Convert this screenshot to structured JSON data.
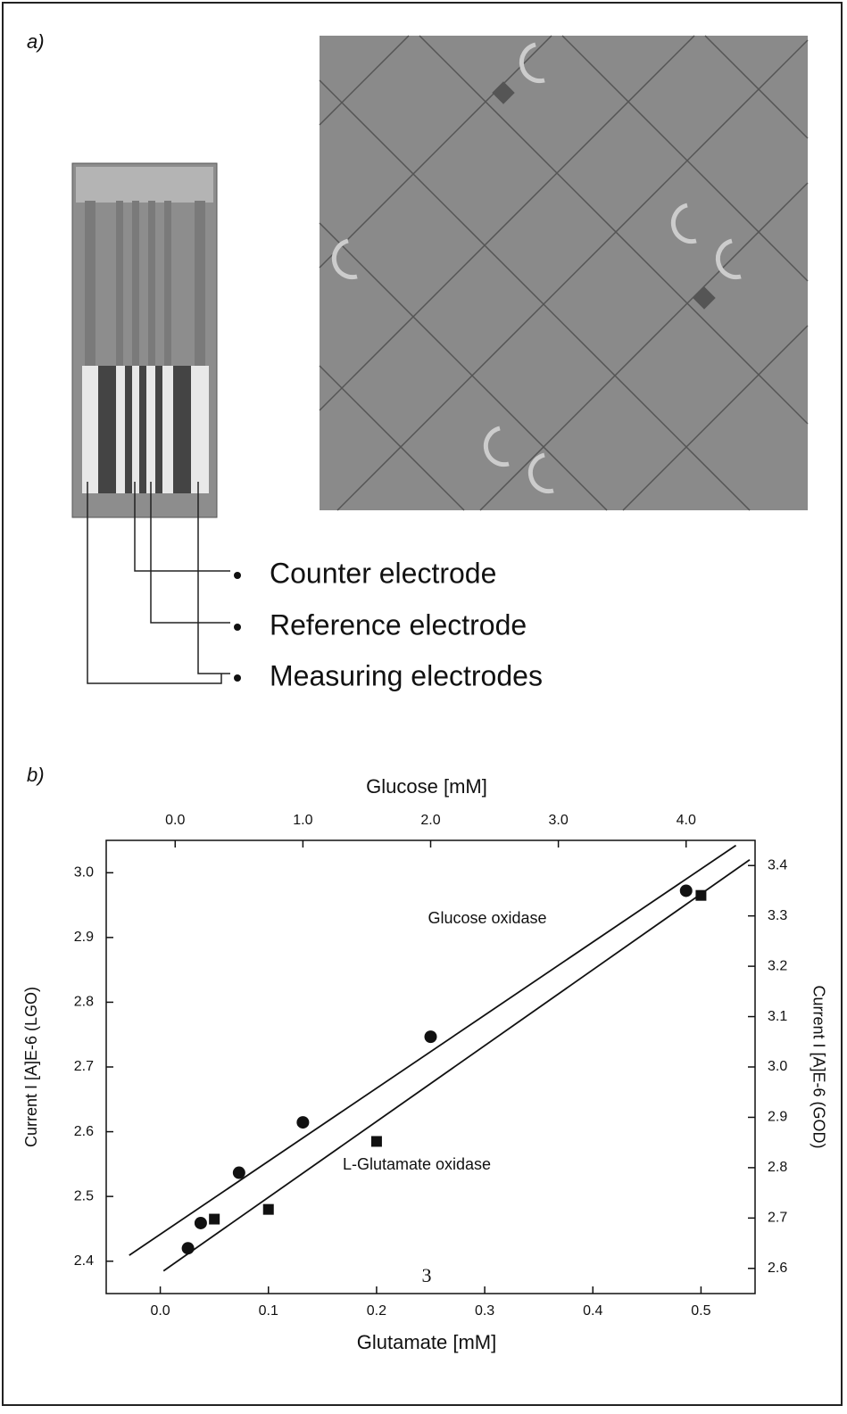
{
  "panel_a": {
    "label": "a)",
    "electrodes": [
      "Counter electrode",
      "Reference electrode",
      "Measuring electrodes"
    ]
  },
  "panel_b_label": "b)",
  "chart_data": {
    "type": "scatter",
    "x_label": "Glutamate [mM]",
    "x2_label": "Glucose [mM]",
    "y_label": "Current I [A]E-6 (LGO)",
    "y2_label": "Current I [A]E-6 (GOD)",
    "xlim": [
      -0.05,
      0.55
    ],
    "xticks": [
      {
        "value": 0,
        "label": "0.0"
      },
      0.1,
      0.2,
      0.3,
      0.4,
      0.5
    ],
    "x2lim": [
      -0.54,
      4.54
    ],
    "x2ticks": [
      {
        "value": 0,
        "label": "0.0"
      },
      {
        "value": 1,
        "label": "1.0"
      },
      {
        "value": 2,
        "label": "2.0"
      },
      {
        "value": 3,
        "label": "3.0"
      },
      {
        "value": 4,
        "label": "4.0"
      }
    ],
    "ylim": [
      2.35,
      3.05
    ],
    "yticks": [
      2.4,
      2.5,
      2.6,
      2.7,
      2.8,
      2.9,
      {
        "value": 3,
        "label": "3.0"
      }
    ],
    "y2lim": [
      2.55,
      3.45
    ],
    "y2ticks": [
      2.6,
      2.7,
      2.8,
      2.9,
      {
        "value": 3,
        "label": "3.0"
      },
      3.1,
      3.2,
      3.3,
      3.4
    ],
    "series": [
      {
        "name": "Glucose oxidase",
        "axis": "y2",
        "xaxis": "x2",
        "marker": "circle",
        "color": "#111111",
        "x": [
          0.1,
          0.2,
          0.5,
          1.0,
          2.0,
          4.0
        ],
        "values": [
          2.64,
          2.69,
          2.79,
          2.89,
          3.06,
          3.35
        ],
        "fit": {
          "x": [
            -0.36,
            4.39
          ],
          "values": [
            2.626,
            3.44
          ]
        }
      },
      {
        "name": "L-Glutamate oxidase",
        "axis": "y",
        "xaxis": "x",
        "marker": "square",
        "color": "#111111",
        "x": [
          0.05,
          0.1,
          0.2,
          0.5
        ],
        "values": [
          2.465,
          2.48,
          2.585,
          2.965
        ],
        "fit": {
          "x": [
            0.003,
            0.545
          ],
          "values": [
            2.385,
            3.02
          ]
        }
      }
    ]
  },
  "page_mark": "3"
}
